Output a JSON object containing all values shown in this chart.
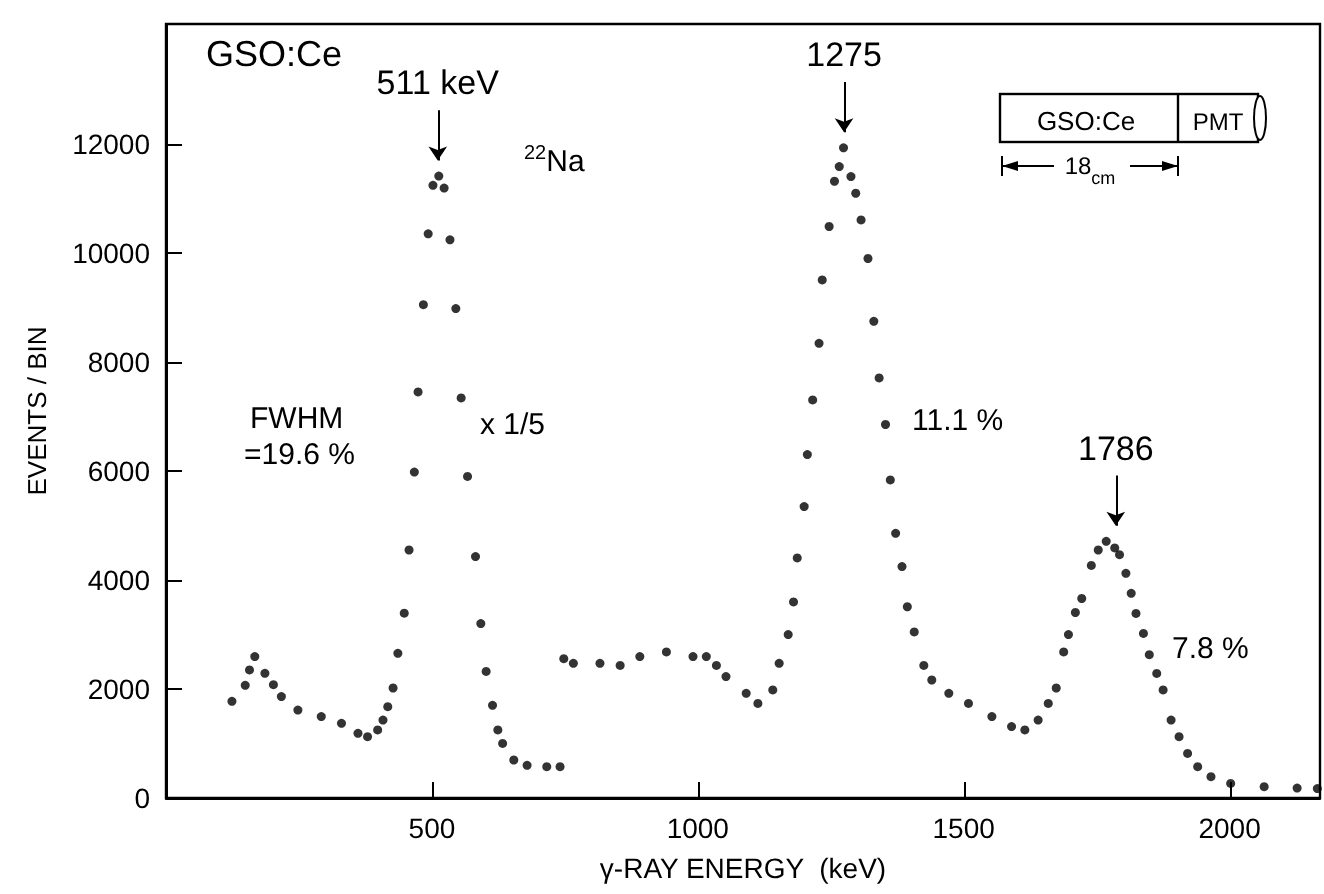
{
  "chart_data": {
    "type": "scatter",
    "title": "GSO:Ce",
    "xlabel": "γ-RAY ENERGY  (keV)",
    "ylabel": "EVENTS / BIN",
    "xlim": [
      0,
      2170
    ],
    "ylim": [
      0,
      14200
    ],
    "xticks": [
      500,
      1000,
      1500,
      2000
    ],
    "yticks": [
      0,
      2000,
      4000,
      6000,
      8000,
      10000,
      12000
    ],
    "marker": "circle",
    "grid": false,
    "series": [
      {
        "color": "#000000",
        "x": [
          124,
          149,
          157,
          167,
          186,
          202,
          217,
          248,
          292,
          330,
          361,
          379,
          398,
          408,
          417,
          427,
          436,
          448,
          457,
          467,
          474,
          484,
          493,
          502,
          513,
          523,
          534,
          545,
          555,
          567,
          582,
          592,
          602,
          614,
          624,
          633,
          654,
          679,
          716,
          741,
          748,
          766,
          816,
          854,
          891,
          941,
          991,
          1016,
          1035,
          1053,
          1091,
          1113,
          1141,
          1153,
          1170,
          1180,
          1187,
          1200,
          1206,
          1216,
          1228,
          1234,
          1247,
          1257,
          1266,
          1274,
          1288,
          1297,
          1307,
          1320,
          1331,
          1341,
          1353,
          1362,
          1372,
          1384,
          1394,
          1407,
          1425,
          1440,
          1472,
          1509,
          1553,
          1590,
          1615,
          1640,
          1659,
          1674,
          1688,
          1697,
          1710,
          1722,
          1740,
          1753,
          1768,
          1784,
          1793,
          1805,
          1815,
          1824,
          1838,
          1849,
          1863,
          1875,
          1890,
          1905,
          1921,
          1940,
          1965,
          2002,
          2065,
          2127,
          2165
        ],
        "values": [
          1773,
          2067,
          2350,
          2594,
          2287,
          2080,
          1860,
          1613,
          1493,
          1370,
          1187,
          1125,
          1248,
          1430,
          1675,
          2018,
          2655,
          3390,
          4550,
          5980,
          7450,
          9050,
          10350,
          11240,
          11410,
          11190,
          10240,
          8980,
          7340,
          5900,
          4430,
          3200,
          2323,
          1700,
          1248,
          1002,
          697,
          600,
          575,
          575,
          2557,
          2470,
          2470,
          2433,
          2594,
          2680,
          2594,
          2594,
          2433,
          2227,
          1920,
          1736,
          1982,
          2470,
          2998,
          3597,
          4404,
          5347,
          6300,
          7303,
          8342,
          9505,
          10485,
          11315,
          11585,
          11928,
          11400,
          11095,
          10606,
          9898,
          8746,
          7707,
          6852,
          5835,
          4855,
          4246,
          3509,
          3046,
          2433,
          2165,
          1920,
          1736,
          1493,
          1310,
          1248,
          1430,
          1736,
          2018,
          2680,
          2998,
          3403,
          3660,
          4266,
          4550,
          4709,
          4587,
          4465,
          4122,
          3755,
          3387,
          3020,
          2630,
          2285,
          1982,
          1430,
          1125,
          818,
          575,
          392,
          268,
          208,
          183,
          172
        ]
      }
    ],
    "annotations": [
      {
        "text": "511 keV",
        "x": 511,
        "y": 11410
      },
      {
        "text": "1275",
        "x": 1275,
        "y": 11928
      },
      {
        "text": "1786",
        "x": 1786,
        "y": 4709
      },
      "$^{22}$Na",
      "FWHM",
      "=19.6 %",
      "x 1/5",
      "11.1 %",
      "7.8 %",
      "GSO:Ce",
      "PMT",
      "18$_{cm}$"
    ]
  }
}
